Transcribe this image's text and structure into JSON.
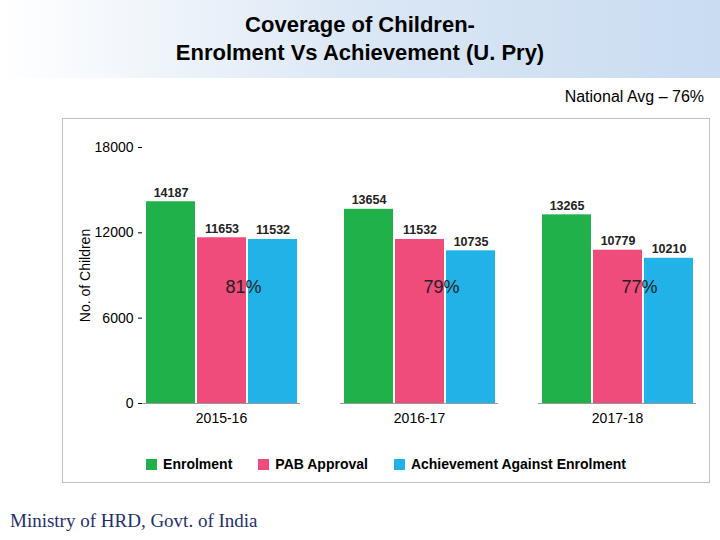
{
  "chart_data": {
    "type": "bar",
    "title": "Coverage of Children-\nEnrolment Vs Achievement (U. Pry)",
    "subtitle": "National Avg – 76%",
    "caption": "Ministry of HRD, Govt. of India",
    "y_label": "No. of Children",
    "categories": [
      "2015-16",
      "2016-17",
      "2017-18"
    ],
    "series": [
      {
        "name": "Enrolment",
        "color": "#21b14b",
        "values": [
          14187,
          13654,
          13265
        ]
      },
      {
        "name": "PAB Approval",
        "color": "#ef4b7b",
        "values": [
          11653,
          11532,
          10779
        ]
      },
      {
        "name": "Achievement Against Enrolment",
        "color": "#21b2e8",
        "values": [
          11532,
          10735,
          10210
        ]
      }
    ],
    "annotations": [
      {
        "category": "2015-16",
        "label": "81%"
      },
      {
        "category": "2016-17",
        "label": "79%"
      },
      {
        "category": "2017-18",
        "label": "77%"
      }
    ],
    "ylim": [
      0,
      18000
    ],
    "yticks": [
      0,
      6000,
      12000,
      18000
    ],
    "grid": false,
    "legend": "bottom",
    "data_labels": true
  }
}
